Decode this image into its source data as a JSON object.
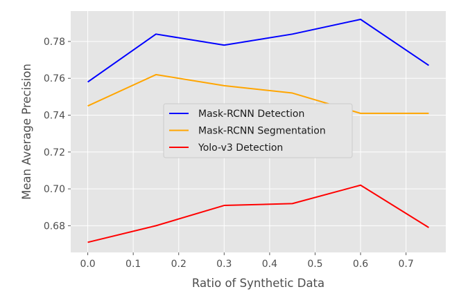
{
  "chart_data": {
    "type": "line",
    "xlabel": "Ratio of Synthetic Data",
    "ylabel": "Mean Average Precision",
    "x": [
      0.0,
      0.15,
      0.3,
      0.45,
      0.6,
      0.75
    ],
    "xlim": [
      -0.0375,
      0.7875
    ],
    "ylim": [
      0.6655,
      0.7965
    ],
    "xticks": [
      0.0,
      0.1,
      0.2,
      0.3,
      0.4,
      0.5,
      0.6,
      0.7
    ],
    "xtick_labels": [
      "0.0",
      "0.1",
      "0.2",
      "0.3",
      "0.4",
      "0.5",
      "0.6",
      "0.7"
    ],
    "yticks": [
      0.68,
      0.7,
      0.72,
      0.74,
      0.76,
      0.78
    ],
    "ytick_labels": [
      "0.68",
      "0.70",
      "0.72",
      "0.74",
      "0.76",
      "0.78"
    ],
    "grid": true,
    "legend_position": "center",
    "series": [
      {
        "name": "Mask-RCNN Detection",
        "color": "#0000ff",
        "values": [
          0.758,
          0.784,
          0.778,
          0.784,
          0.792,
          0.767
        ]
      },
      {
        "name": "Mask-RCNN Segmentation",
        "color": "#ffa500",
        "values": [
          0.745,
          0.762,
          0.756,
          0.752,
          0.741,
          0.741
        ]
      },
      {
        "name": "Yolo-v3 Detection",
        "color": "#ff0000",
        "values": [
          0.671,
          0.68,
          0.691,
          0.692,
          0.702,
          0.679
        ]
      }
    ]
  }
}
